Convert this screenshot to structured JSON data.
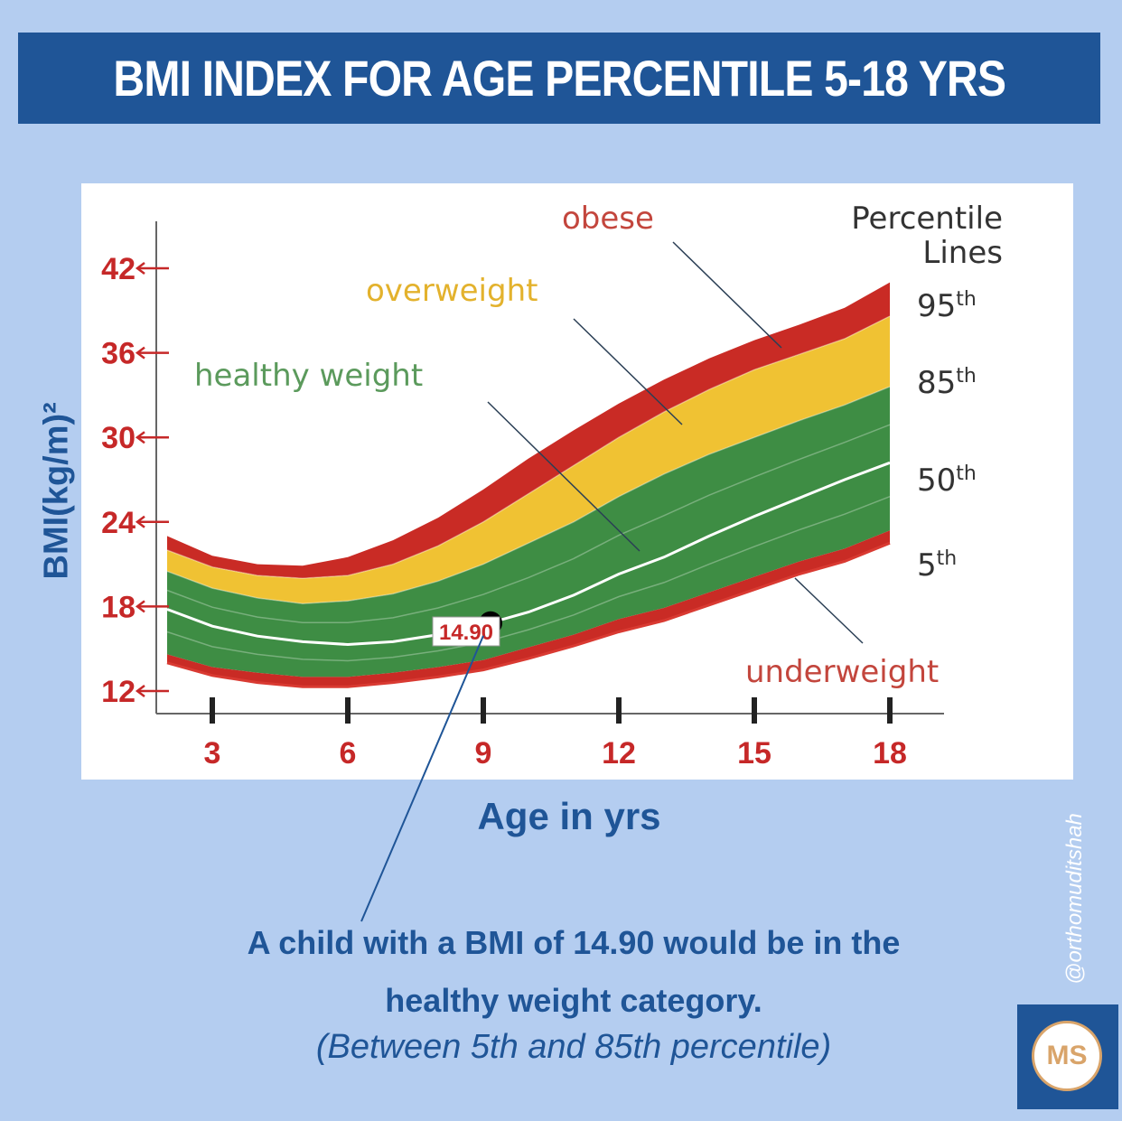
{
  "title": "BMI INDEX FOR AGE PERCENTILE 5-18 YRS",
  "colors": {
    "background": "#b4cdf0",
    "title_bar": "#1f5597",
    "obese": "#c92b25",
    "overweight": "#f0c233",
    "healthy": "#3e8d44",
    "axis_label_red": "#c62828",
    "underweight_line": "#d93a32"
  },
  "chart_data": {
    "type": "area",
    "xlabel": "Age in yrs",
    "ylabel": "BMI(kg/m)²",
    "x_ticks": [
      "3",
      "6",
      "9",
      "12",
      "15",
      "18"
    ],
    "y_ticks": [
      "12",
      "18",
      "24",
      "30",
      "36",
      "42"
    ],
    "xlim": [
      1.7,
      20.0
    ],
    "ylim": [
      9.5,
      44.5
    ],
    "x": [
      2,
      3,
      4,
      5,
      6,
      7,
      8,
      9,
      10,
      11,
      12,
      13,
      14,
      15,
      16,
      17,
      18
    ],
    "series": [
      {
        "name": "underweight",
        "values": [
          14.0,
          13.1,
          12.6,
          12.3,
          12.3,
          12.6,
          13.0,
          13.5,
          14.3,
          15.2,
          16.2,
          17.0,
          18.1,
          19.2,
          20.3,
          21.2,
          22.5
        ]
      },
      {
        "name": "5th",
        "values": [
          14.6,
          13.7,
          13.3,
          13.0,
          13.0,
          13.3,
          13.7,
          14.2,
          15.1,
          16.0,
          17.1,
          17.9,
          19.0,
          20.1,
          21.2,
          22.1,
          23.4
        ]
      },
      {
        "name": "50th",
        "values": [
          17.8,
          16.6,
          15.9,
          15.5,
          15.3,
          15.5,
          16.0,
          16.7,
          17.6,
          18.8,
          20.3,
          21.5,
          23.0,
          24.4,
          25.7,
          27.0,
          28.2
        ]
      },
      {
        "name": "85th",
        "values": [
          20.5,
          19.3,
          18.6,
          18.2,
          18.4,
          18.9,
          19.8,
          21.0,
          22.5,
          24.0,
          25.8,
          27.4,
          28.8,
          30.0,
          31.2,
          32.3,
          33.6
        ]
      },
      {
        "name": "95th",
        "values": [
          22.0,
          20.8,
          20.2,
          20.0,
          20.2,
          21.0,
          22.3,
          24.0,
          26.0,
          28.0,
          30.0,
          31.8,
          33.4,
          34.8,
          35.9,
          37.0,
          38.6
        ]
      },
      {
        "name": "obese",
        "values": [
          23.0,
          21.6,
          21.0,
          20.9,
          21.5,
          22.7,
          24.3,
          26.3,
          28.5,
          30.5,
          32.4,
          34.1,
          35.6,
          36.9,
          38.0,
          39.2,
          41.0
        ]
      }
    ],
    "point": {
      "x": 9.0,
      "y": 14.9,
      "label": "14.90"
    },
    "annotations": {
      "obese": "obese",
      "overweight": "overweight",
      "healthy": "healthy weight",
      "underweight": "underweight",
      "legend_title": "Percentile",
      "legend_title2": "Lines"
    },
    "percentile_labels": [
      {
        "num": "95",
        "sup": "th"
      },
      {
        "num": "85",
        "sup": "th"
      },
      {
        "num": "50",
        "sup": "th"
      },
      {
        "num": "5",
        "sup": "th"
      }
    ]
  },
  "caption": {
    "line1": "A child with a BMI of 14.90 would be in the",
    "line2": "healthy weight category.",
    "line3": "(Between 5th and 85th percentile)"
  },
  "credit": "@orthomuditshah",
  "logo_text": "MS"
}
